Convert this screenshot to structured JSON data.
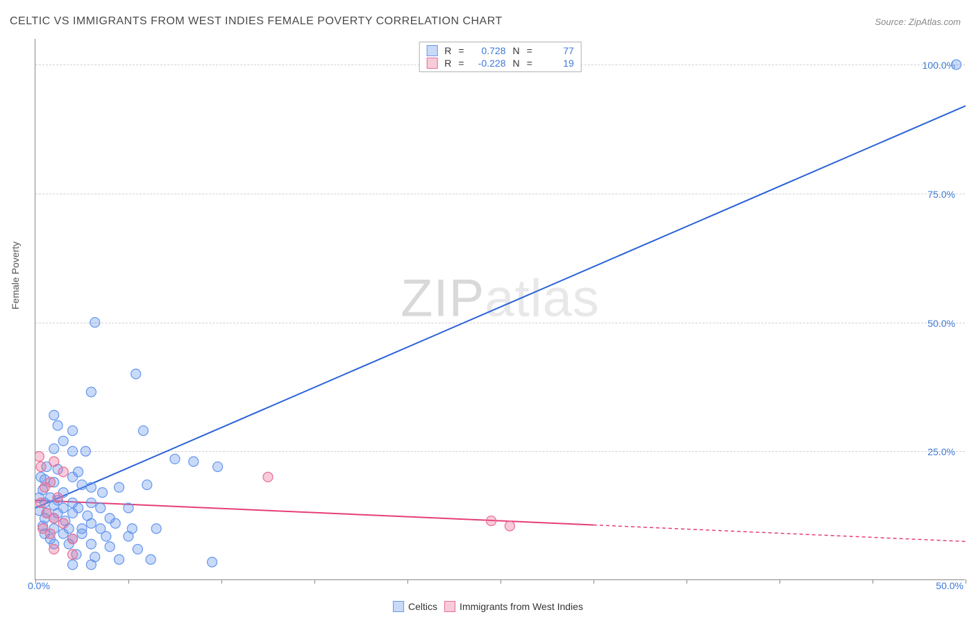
{
  "title": "CELTIC VS IMMIGRANTS FROM WEST INDIES FEMALE POVERTY CORRELATION CHART",
  "source": "Source: ZipAtlas.com",
  "y_axis_label": "Female Poverty",
  "watermark": "ZIPatlas",
  "chart": {
    "type": "scatter-correlation",
    "xlim": [
      0,
      50
    ],
    "ylim": [
      0,
      105
    ],
    "y_ticks": [
      25,
      50,
      75,
      100
    ],
    "y_tick_labels": [
      "25.0%",
      "50.0%",
      "75.0%",
      "100.0%"
    ],
    "x_tick_positions": [
      0,
      5,
      10,
      15,
      20,
      25,
      30,
      35,
      40,
      45,
      50
    ],
    "x_tick_labels": {
      "0": "0.0%",
      "50": "50.0%"
    },
    "background_color": "#ffffff",
    "grid_color": "#d0d0d0",
    "axis_color": "#888888",
    "text_color": "#555555",
    "value_label_color": "#3c78d8",
    "marker_radius": 7,
    "marker_stroke_width": 1.2,
    "series": [
      {
        "name": "Celtics",
        "color_fill": "rgba(100,149,237,0.35)",
        "color_stroke": "#6495ed",
        "line_color": "#2962d9",
        "line_style": "solid",
        "r": "0.728",
        "n": "77",
        "regression": {
          "x1": 0,
          "y1": 14,
          "x2": 50,
          "y2": 92
        },
        "points": [
          [
            49.5,
            100
          ],
          [
            3.2,
            50
          ],
          [
            5.4,
            40
          ],
          [
            3.0,
            36.5
          ],
          [
            1.0,
            32
          ],
          [
            1.2,
            30
          ],
          [
            2.0,
            29
          ],
          [
            5.8,
            29
          ],
          [
            1.5,
            27
          ],
          [
            1.0,
            25.5
          ],
          [
            2.0,
            25
          ],
          [
            2.7,
            25
          ],
          [
            7.5,
            23.5
          ],
          [
            8.5,
            23
          ],
          [
            9.8,
            22
          ],
          [
            0.6,
            22
          ],
          [
            1.2,
            21.5
          ],
          [
            2.3,
            21
          ],
          [
            2.0,
            20
          ],
          [
            0.3,
            20
          ],
          [
            0.5,
            19.5
          ],
          [
            1.0,
            19
          ],
          [
            2.5,
            18.5
          ],
          [
            3.0,
            18
          ],
          [
            0.4,
            17.5
          ],
          [
            1.5,
            17
          ],
          [
            3.6,
            17
          ],
          [
            4.5,
            18
          ],
          [
            6.0,
            18.5
          ],
          [
            0.2,
            16
          ],
          [
            0.8,
            16
          ],
          [
            1.2,
            15.5
          ],
          [
            2.0,
            15
          ],
          [
            3.0,
            15
          ],
          [
            0.5,
            15
          ],
          [
            1.0,
            14.5
          ],
          [
            1.5,
            14
          ],
          [
            2.3,
            14
          ],
          [
            3.5,
            14
          ],
          [
            5.0,
            14
          ],
          [
            0.2,
            13.5
          ],
          [
            0.6,
            13
          ],
          [
            1.2,
            13
          ],
          [
            2.0,
            13
          ],
          [
            2.8,
            12.5
          ],
          [
            4.0,
            12
          ],
          [
            0.5,
            12
          ],
          [
            1.0,
            12
          ],
          [
            1.6,
            11.5
          ],
          [
            3.0,
            11
          ],
          [
            4.3,
            11
          ],
          [
            0.4,
            10.5
          ],
          [
            1.0,
            10
          ],
          [
            1.8,
            10
          ],
          [
            2.5,
            10
          ],
          [
            3.5,
            10
          ],
          [
            5.2,
            10
          ],
          [
            6.5,
            10
          ],
          [
            0.5,
            9
          ],
          [
            1.5,
            9
          ],
          [
            2.5,
            9
          ],
          [
            3.8,
            8.5
          ],
          [
            5.0,
            8.5
          ],
          [
            0.8,
            8
          ],
          [
            2.0,
            8
          ],
          [
            1.0,
            7
          ],
          [
            1.8,
            7
          ],
          [
            3.0,
            7
          ],
          [
            4.0,
            6.5
          ],
          [
            5.5,
            6
          ],
          [
            2.2,
            5
          ],
          [
            3.2,
            4.5
          ],
          [
            4.5,
            4
          ],
          [
            6.2,
            4
          ],
          [
            9.5,
            3.5
          ],
          [
            3.0,
            3
          ],
          [
            2.0,
            3
          ]
        ]
      },
      {
        "name": "Immigrants from West Indies",
        "color_fill": "rgba(233,107,148,0.35)",
        "color_stroke": "#e96b94",
        "line_color": "#e63e74",
        "line_style_solid_until_x": 30,
        "r": "-0.228",
        "n": "19",
        "regression": {
          "x1": 0,
          "y1": 15.5,
          "x2": 50,
          "y2": 7.5
        },
        "points": [
          [
            0.3,
            22
          ],
          [
            0.2,
            24
          ],
          [
            1.0,
            23
          ],
          [
            1.5,
            21
          ],
          [
            0.5,
            18
          ],
          [
            0.8,
            19
          ],
          [
            1.2,
            16
          ],
          [
            0.3,
            15
          ],
          [
            0.6,
            13
          ],
          [
            1.0,
            12
          ],
          [
            1.5,
            11
          ],
          [
            0.4,
            10
          ],
          [
            0.8,
            9
          ],
          [
            2.0,
            8
          ],
          [
            1.0,
            6
          ],
          [
            2.0,
            5
          ],
          [
            12.5,
            20
          ],
          [
            24.5,
            11.5
          ],
          [
            25.5,
            10.5
          ]
        ]
      }
    ]
  },
  "legend_bottom": {
    "series1_label": "Celtics",
    "series2_label": "Immigrants from West Indies"
  },
  "legend_top": {
    "r_label": "R",
    "n_label": "N",
    "eq": "="
  }
}
